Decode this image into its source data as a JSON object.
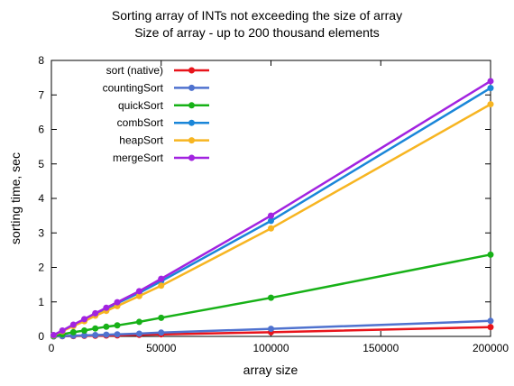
{
  "chart_data": {
    "type": "line",
    "title": "Sorting array of INTs not exceeding the size of array",
    "subtitle": "Size of array - up to 200 thousand elements",
    "xlabel": "array size",
    "ylabel": "sorting time, sec",
    "xlim": [
      0,
      200000
    ],
    "ylim": [
      0,
      8
    ],
    "x_ticks": [
      0,
      50000,
      100000,
      150000,
      200000
    ],
    "y_ticks": [
      0,
      1,
      2,
      3,
      4,
      5,
      6,
      7,
      8
    ],
    "grid": false,
    "legend_position": "top-left",
    "x": [
      1000,
      5000,
      10000,
      15000,
      20000,
      25000,
      30000,
      40000,
      50000,
      100000,
      200000
    ],
    "series": [
      {
        "name": "sort (native)",
        "color": "#e8141b",
        "values": [
          0.0,
          0.005,
          0.01,
          0.015,
          0.02,
          0.025,
          0.03,
          0.045,
          0.06,
          0.12,
          0.27
        ]
      },
      {
        "name": "countingSort",
        "color": "#4f72cf",
        "values": [
          0.0,
          0.01,
          0.02,
          0.03,
          0.04,
          0.05,
          0.06,
          0.08,
          0.11,
          0.22,
          0.45
        ]
      },
      {
        "name": "quickSort",
        "color": "#17b117",
        "values": [
          0.01,
          0.06,
          0.12,
          0.17,
          0.23,
          0.28,
          0.32,
          0.42,
          0.54,
          1.12,
          2.37
        ]
      },
      {
        "name": "combSort",
        "color": "#1a86d8",
        "values": [
          0.03,
          0.16,
          0.32,
          0.48,
          0.65,
          0.8,
          0.96,
          1.26,
          1.6,
          3.35,
          7.2
        ]
      },
      {
        "name": "heapSort",
        "color": "#f7b521",
        "values": [
          0.03,
          0.15,
          0.3,
          0.44,
          0.6,
          0.74,
          0.88,
          1.17,
          1.47,
          3.13,
          6.73
        ]
      },
      {
        "name": "mergeSort",
        "color": "#a223e0",
        "values": [
          0.04,
          0.17,
          0.34,
          0.5,
          0.67,
          0.83,
          0.99,
          1.31,
          1.67,
          3.5,
          7.4
        ]
      }
    ]
  }
}
